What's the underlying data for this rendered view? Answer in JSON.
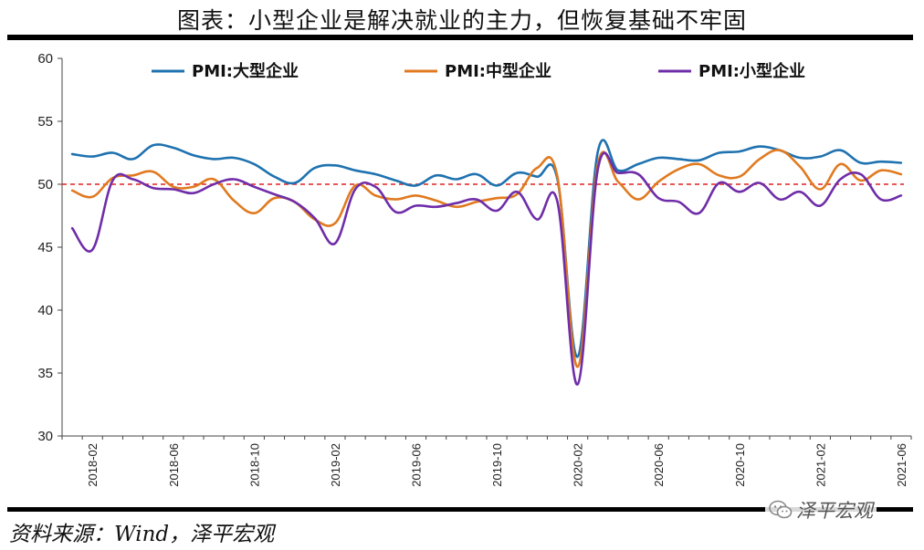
{
  "title": "图表：小型企业是解决就业的主力，但恢复基础不牢固",
  "source": "资料来源：Wind，泽平宏观",
  "watermark": {
    "text": "泽平宏观",
    "icon": "wechat-icon"
  },
  "chart_data": {
    "type": "line",
    "xlabel": "",
    "ylabel": "",
    "ylim": [
      30,
      60
    ],
    "yticks": [
      30,
      35,
      40,
      45,
      50,
      55,
      60
    ],
    "reference_line": {
      "value": 50,
      "style": "dashed",
      "color": "#e02020"
    },
    "grid": false,
    "legend_position": "top",
    "x": [
      "2018-01",
      "2018-02",
      "2018-03",
      "2018-04",
      "2018-05",
      "2018-06",
      "2018-07",
      "2018-08",
      "2018-09",
      "2018-10",
      "2018-11",
      "2018-12",
      "2019-01",
      "2019-02",
      "2019-03",
      "2019-04",
      "2019-05",
      "2019-06",
      "2019-07",
      "2019-08",
      "2019-09",
      "2019-10",
      "2019-11",
      "2019-12",
      "2020-01",
      "2020-02",
      "2020-03",
      "2020-04",
      "2020-05",
      "2020-06",
      "2020-07",
      "2020-08",
      "2020-09",
      "2020-10",
      "2020-11",
      "2020-12",
      "2021-01",
      "2021-02",
      "2021-03",
      "2021-04",
      "2021-05",
      "2021-06"
    ],
    "xtick_labels": [
      "2018-02",
      "2018-06",
      "2018-10",
      "2019-02",
      "2019-06",
      "2019-10",
      "2020-02",
      "2020-06",
      "2020-10",
      "2021-02",
      "2021-06"
    ],
    "series": [
      {
        "name": "PMI:大型企业",
        "color": "#1f72b0",
        "values": [
          52.4,
          52.2,
          52.5,
          52.0,
          53.1,
          52.9,
          52.3,
          52.0,
          52.1,
          51.6,
          50.6,
          50.1,
          51.3,
          51.5,
          51.1,
          50.8,
          50.3,
          49.9,
          50.7,
          50.4,
          50.8,
          49.9,
          50.9,
          50.6,
          50.4,
          36.3,
          52.6,
          51.1,
          51.6,
          52.1,
          52.0,
          51.9,
          52.5,
          52.6,
          53.0,
          52.7,
          52.1,
          52.2,
          52.7,
          51.7,
          51.8,
          51.7
        ]
      },
      {
        "name": "PMI:中型企业",
        "color": "#e07a20",
        "values": [
          49.5,
          49.0,
          50.5,
          50.7,
          51.0,
          49.8,
          49.8,
          50.4,
          48.7,
          47.7,
          48.9,
          48.6,
          47.2,
          46.9,
          49.9,
          49.1,
          48.8,
          49.1,
          48.7,
          48.2,
          48.6,
          48.9,
          49.2,
          51.3,
          50.6,
          35.5,
          51.6,
          50.2,
          48.8,
          50.2,
          51.2,
          51.6,
          50.7,
          50.6,
          52.0,
          52.7,
          51.4,
          49.6,
          51.6,
          50.3,
          51.1,
          50.8
        ]
      },
      {
        "name": "PMI:小型企业",
        "color": "#6f2da8",
        "values": [
          46.5,
          44.8,
          50.3,
          50.4,
          49.7,
          49.6,
          49.3,
          50.0,
          50.4,
          49.8,
          49.2,
          48.6,
          47.3,
          45.3,
          49.6,
          49.8,
          47.8,
          48.3,
          48.2,
          48.5,
          48.8,
          47.9,
          49.4,
          47.2,
          48.6,
          34.1,
          51.2,
          50.9,
          50.8,
          48.9,
          48.6,
          47.7,
          50.1,
          49.4,
          50.1,
          48.8,
          49.4,
          48.3,
          50.4,
          50.8,
          48.8,
          49.1
        ]
      }
    ]
  }
}
